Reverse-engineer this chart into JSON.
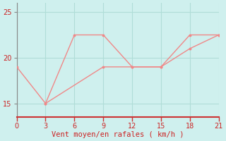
{
  "xlabel": "Vent moyen/en rafales ( km/h )",
  "bg_color": "#cff0ee",
  "grid_color": "#b0ddd8",
  "line_color": "#f08888",
  "axis_color": "#888888",
  "tick_color": "#cc3333",
  "label_color": "#cc2222",
  "x_series1": [
    0,
    3,
    6,
    9,
    12,
    15,
    18,
    21
  ],
  "y_series1": [
    19,
    15,
    22.5,
    22.5,
    19,
    19,
    22.5,
    22.5
  ],
  "x_series2": [
    3,
    9,
    12,
    15,
    18,
    21
  ],
  "y_series2": [
    15,
    19,
    19,
    19,
    21,
    22.5
  ],
  "xlim": [
    0,
    21
  ],
  "ylim": [
    13.5,
    26
  ],
  "xticks": [
    0,
    3,
    6,
    9,
    12,
    15,
    18,
    21
  ],
  "yticks": [
    15,
    20,
    25
  ],
  "tick_fontsize": 7,
  "label_fontsize": 7.5
}
